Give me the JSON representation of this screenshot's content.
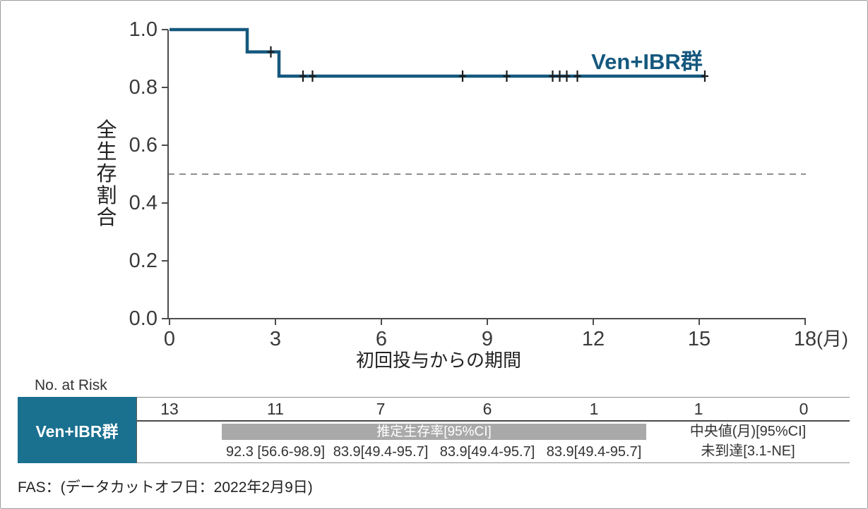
{
  "chart_data": {
    "type": "line",
    "subtype": "kaplan-meier-step",
    "title": "",
    "xlabel": "初回投与からの期間",
    "ylabel": "全生存割合",
    "x_unit_label": "(月)",
    "xlim": [
      0,
      18
    ],
    "ylim": [
      0.0,
      1.0
    ],
    "x_ticks": [
      0,
      3,
      6,
      9,
      12,
      15,
      18
    ],
    "y_ticks": [
      "0.0",
      "0.2",
      "0.4",
      "0.6",
      "0.8",
      "1.0"
    ],
    "grid": false,
    "reference_line_y": 0.5,
    "legend_position": "inline-top-right",
    "series": [
      {
        "name": "Ven+IBR群",
        "color": "#15587e",
        "steps": [
          [
            0,
            1.0
          ],
          [
            2.2,
            1.0
          ],
          [
            2.2,
            0.923
          ],
          [
            3.1,
            0.923
          ],
          [
            3.1,
            0.839
          ],
          [
            15.16,
            0.839
          ]
        ],
        "censor_marks": [
          [
            2.87,
            0.923
          ],
          [
            3.78,
            0.839
          ],
          [
            4.05,
            0.839
          ],
          [
            8.3,
            0.839
          ],
          [
            9.55,
            0.839
          ],
          [
            10.85,
            0.839
          ],
          [
            11.05,
            0.839
          ],
          [
            11.25,
            0.839
          ],
          [
            11.55,
            0.839
          ],
          [
            15.16,
            0.839
          ]
        ]
      }
    ]
  },
  "risk_table": {
    "title": "No. at Risk",
    "row_label": "Ven+IBR群",
    "counts": [
      13,
      11,
      7,
      6,
      1,
      1,
      0
    ],
    "estimate_header": "推定生存率[95%CI]",
    "estimates": [
      "92.3 [56.6-98.9]",
      "83.9[49.4-95.7]",
      "83.9[49.4-95.7]",
      "83.9[49.4-95.7]"
    ],
    "median_header": "中央値(月)[95%CI]",
    "median_value": "未到達[3.1-NE]"
  },
  "footer": {
    "note": "FAS：(データカットオフ日：2022年2月9日)"
  },
  "colors": {
    "curve": "#15587e",
    "series_label": "#15587e",
    "table_header_bg": "#19708f",
    "gray_bar_bg": "#a9a9a9",
    "axis": "#4c4c4c",
    "text": "#3a3a3a",
    "dashed_line": "#8f8f8f",
    "censor": "#1c1c1c"
  }
}
